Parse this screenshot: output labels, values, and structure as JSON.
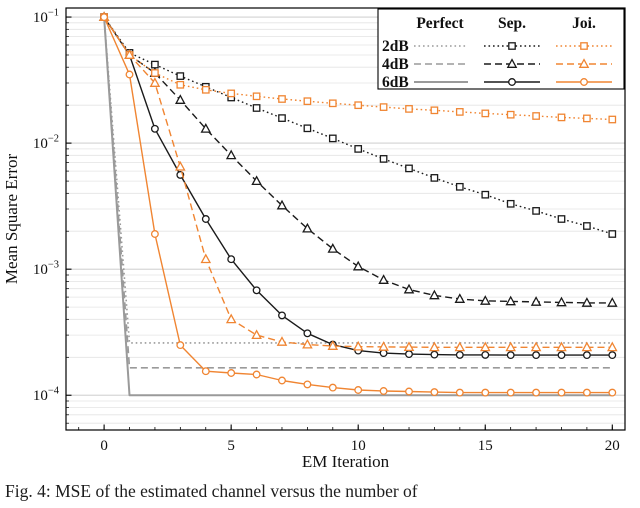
{
  "page": {
    "caption": "Fig. 4: MSE of the estimated channel versus the number of"
  },
  "chart_data": {
    "type": "line",
    "title": "",
    "xlabel": "EM Iteration",
    "ylabel": "Mean Square Error",
    "x_ticks": [
      0,
      5,
      10,
      15,
      20
    ],
    "xlim": [
      -1.5,
      20.5
    ],
    "y_scale": "log",
    "y_tick_exponents": [
      -1,
      -2,
      -3,
      -4
    ],
    "ylim": [
      5.3e-05,
      0.118
    ],
    "grid": "horizontal-log",
    "legend": {
      "position": "top-right",
      "col_headers": [
        "Perfect",
        "Sep.",
        "Joi."
      ],
      "row_labels": [
        "2dB",
        "4dB",
        "6dB"
      ]
    },
    "colors": {
      "perfect": "#9a9a9a",
      "sep": "#1a1a1a",
      "joi": "#f08532"
    },
    "series": [
      {
        "id": "perfect-2db",
        "name": "Perfect 2dB",
        "group": "perfect",
        "snr": "2dB",
        "color": "#9a9a9a",
        "dash": "dotted",
        "marker": "none",
        "x": [
          0,
          1,
          20
        ],
        "y": [
          0.1,
          0.00026,
          0.00026
        ]
      },
      {
        "id": "perfect-4db",
        "name": "Perfect 4dB",
        "group": "perfect",
        "snr": "4dB",
        "color": "#9a9a9a",
        "dash": "dashed",
        "marker": "none",
        "x": [
          0,
          1,
          20
        ],
        "y": [
          0.1,
          0.000165,
          0.000165
        ]
      },
      {
        "id": "perfect-6db",
        "name": "Perfect 6dB",
        "group": "perfect",
        "snr": "6dB",
        "color": "#9a9a9a",
        "dash": "solid",
        "marker": "none",
        "x": [
          0,
          1,
          20
        ],
        "y": [
          0.1,
          0.0001,
          0.0001
        ]
      },
      {
        "id": "sep-2db",
        "name": "Sep. 2dB",
        "group": "sep",
        "snr": "2dB",
        "color": "#1a1a1a",
        "dash": "dotted",
        "marker": "square",
        "x": [
          0,
          1,
          2,
          3,
          4,
          5,
          6,
          7,
          8,
          9,
          10,
          11,
          12,
          13,
          14,
          15,
          16,
          17,
          18,
          19,
          20
        ],
        "y": [
          0.1,
          0.052,
          0.042,
          0.034,
          0.028,
          0.023,
          0.019,
          0.0158,
          0.0131,
          0.0109,
          0.009,
          0.0075,
          0.0063,
          0.0053,
          0.0045,
          0.0039,
          0.0033,
          0.0029,
          0.0025,
          0.0022,
          0.0019
        ]
      },
      {
        "id": "sep-4db",
        "name": "Sep. 4dB",
        "group": "sep",
        "snr": "4dB",
        "color": "#1a1a1a",
        "dash": "dashed",
        "marker": "triangle",
        "x": [
          0,
          1,
          2,
          3,
          4,
          5,
          6,
          7,
          8,
          9,
          10,
          11,
          12,
          13,
          14,
          15,
          16,
          17,
          18,
          19,
          20
        ],
        "y": [
          0.1,
          0.05,
          0.036,
          0.022,
          0.013,
          0.008,
          0.005,
          0.0032,
          0.0021,
          0.00145,
          0.00105,
          0.00082,
          0.00069,
          0.00062,
          0.00058,
          0.00056,
          0.000555,
          0.00055,
          0.000545,
          0.00054,
          0.00054
        ]
      },
      {
        "id": "sep-6db",
        "name": "Sep. 6dB",
        "group": "sep",
        "snr": "6dB",
        "color": "#1a1a1a",
        "dash": "solid",
        "marker": "circle",
        "x": [
          0,
          1,
          2,
          3,
          4,
          5,
          6,
          7,
          8,
          9,
          10,
          11,
          12,
          13,
          14,
          15,
          16,
          17,
          18,
          19,
          20
        ],
        "y": [
          0.1,
          0.05,
          0.013,
          0.0056,
          0.0025,
          0.0012,
          0.00068,
          0.00043,
          0.00031,
          0.000252,
          0.000226,
          0.000216,
          0.000212,
          0.00021,
          0.000209,
          0.000209,
          0.000208,
          0.000208,
          0.000208,
          0.000208,
          0.000208
        ]
      },
      {
        "id": "joi-2db",
        "name": "Joi. 2dB",
        "group": "joi",
        "snr": "2dB",
        "color": "#f08532",
        "dash": "dotted",
        "marker": "square",
        "x": [
          0,
          1,
          2,
          3,
          4,
          5,
          6,
          7,
          8,
          9,
          10,
          11,
          12,
          13,
          14,
          15,
          16,
          17,
          18,
          19,
          20
        ],
        "y": [
          0.1,
          0.05,
          0.036,
          0.029,
          0.0265,
          0.0248,
          0.0235,
          0.0224,
          0.0215,
          0.0207,
          0.02,
          0.0193,
          0.0187,
          0.0182,
          0.0177,
          0.0172,
          0.0168,
          0.0164,
          0.016,
          0.0157,
          0.0154
        ]
      },
      {
        "id": "joi-4db",
        "name": "Joi. 4dB",
        "group": "joi",
        "snr": "4dB",
        "color": "#f08532",
        "dash": "dashed",
        "marker": "triangle",
        "x": [
          0,
          1,
          2,
          3,
          4,
          5,
          6,
          7,
          8,
          9,
          10,
          11,
          12,
          13,
          14,
          15,
          16,
          17,
          18,
          19,
          20
        ],
        "y": [
          0.1,
          0.05,
          0.03,
          0.0065,
          0.0012,
          0.0004,
          0.0003,
          0.000265,
          0.000252,
          0.000246,
          0.000243,
          0.000242,
          0.000241,
          0.00024,
          0.00024,
          0.00024,
          0.00024,
          0.00024,
          0.00024,
          0.00024,
          0.00024
        ]
      },
      {
        "id": "joi-6db",
        "name": "Joi. 6dB",
        "group": "joi",
        "snr": "6dB",
        "color": "#f08532",
        "dash": "solid",
        "marker": "circle",
        "x": [
          0,
          1,
          2,
          3,
          4,
          5,
          6,
          7,
          8,
          9,
          10,
          11,
          12,
          13,
          14,
          15,
          16,
          17,
          18,
          19,
          20
        ],
        "y": [
          0.1,
          0.035,
          0.0019,
          0.00025,
          0.000155,
          0.00015,
          0.000146,
          0.000131,
          0.000122,
          0.000115,
          0.00011,
          0.000108,
          0.000107,
          0.000106,
          0.000105,
          0.000105,
          0.000105,
          0.000105,
          0.000105,
          0.000105,
          0.000105
        ]
      }
    ]
  }
}
